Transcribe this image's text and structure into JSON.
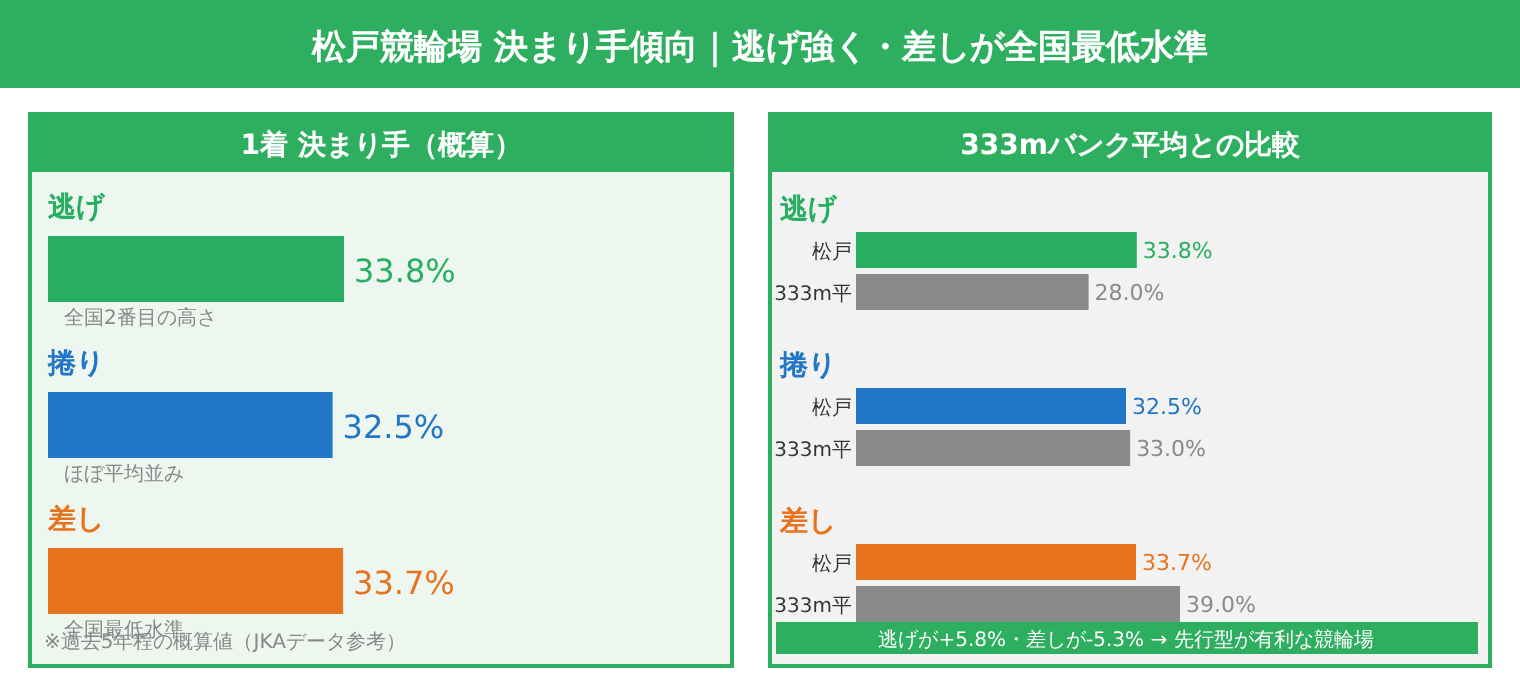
{
  "chart_data": [
    {
      "type": "bar",
      "orientation": "horizontal",
      "title": "松戸競輪場 決まり手傾向｜逃げ強く・差しが全国最低水準",
      "subtitle": "1着 決まり手（概算）",
      "categories": [
        "逃げ",
        "捲り",
        "差し"
      ],
      "values": [
        33.8,
        32.5,
        33.7
      ],
      "colors": [
        "#27ae60",
        "#2176c7",
        "#e8731f"
      ],
      "value_labels": [
        "33.8%",
        "32.5%",
        "33.7%"
      ],
      "annotations": [
        "全国2番目の高さ",
        "ほぼ平均並み",
        "全国最低水準",
        "※過去5年程の概算値（JKAデータ参考）"
      ]
    },
    {
      "type": "bar",
      "orientation": "horizontal",
      "title": "333mバンク平均との比較",
      "categories": [
        "逃げ",
        "捲り",
        "差し"
      ],
      "series": [
        {
          "name": "松戸",
          "colors": [
            "#27ae60",
            "#2176c7",
            "#e8731f"
          ],
          "values": [
            33.8,
            32.5,
            33.7
          ],
          "value_labels": [
            "33.8%",
            "32.5%",
            "33.7%"
          ]
        },
        {
          "name": "333m平",
          "color": "#8a8a8a",
          "values": [
            28.0,
            33.0,
            39.0
          ],
          "value_labels": [
            "28.0%",
            "33.0%",
            "39.0%"
          ]
        }
      ],
      "annotations": [
        "逃げが+5.8%・差しが-5.3% → 先行型が有利な競輪場"
      ]
    }
  ]
}
